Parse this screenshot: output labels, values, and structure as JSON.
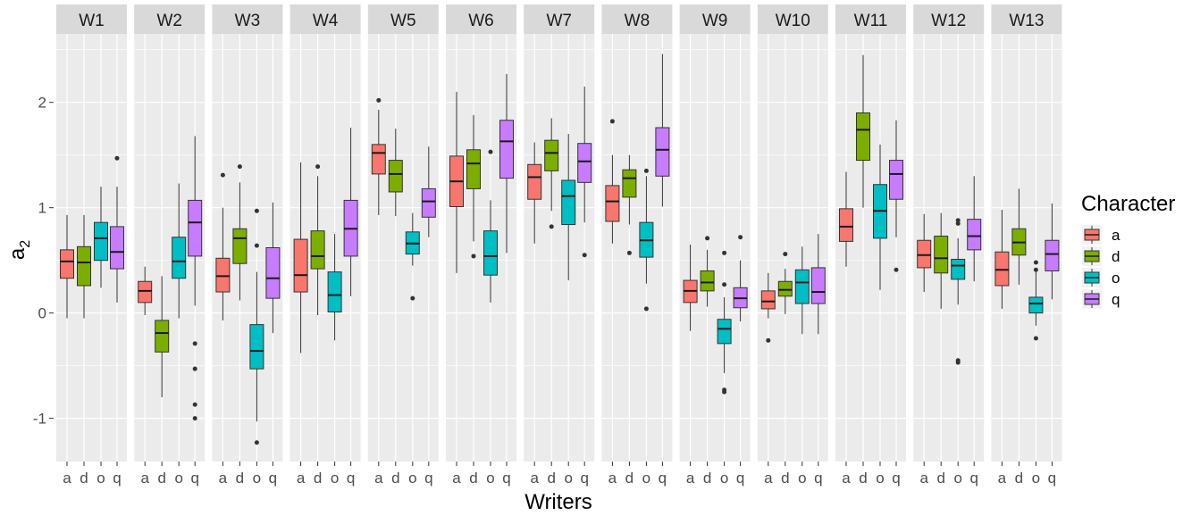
{
  "chart_data": {
    "type": "boxplot",
    "xlabel": "Writers",
    "ylabel": "a",
    "ylabel_sub": "2",
    "ylim": [
      -1.41,
      2.65
    ],
    "yticks": [
      -1,
      0,
      1,
      2
    ],
    "ytick_labels": [
      "-1",
      "0",
      "1",
      "2"
    ],
    "grid": true,
    "legend": {
      "title": "Character",
      "placement": "right",
      "entries": [
        "a",
        "d",
        "o",
        "q"
      ]
    },
    "colors": {
      "a": "#F8766D",
      "d": "#7CAE00",
      "o": "#00BFC4",
      "q": "#C77CFF"
    },
    "categories": [
      "a",
      "d",
      "o",
      "q"
    ],
    "facets": [
      {
        "name": "W1",
        "boxes": [
          [
            -0.05,
            0.33,
            0.49,
            0.6,
            0.93,
            []
          ],
          [
            -0.05,
            0.26,
            0.48,
            0.63,
            0.93,
            []
          ],
          [
            0.24,
            0.5,
            0.71,
            0.86,
            1.2,
            []
          ],
          [
            0.1,
            0.42,
            0.58,
            0.82,
            1.2,
            [
              1.47
            ]
          ]
        ]
      },
      {
        "name": "W2",
        "boxes": [
          [
            -0.02,
            0.1,
            0.21,
            0.3,
            0.44,
            []
          ],
          [
            -0.8,
            -0.37,
            -0.19,
            -0.07,
            0.35,
            []
          ],
          [
            -0.05,
            0.33,
            0.49,
            0.72,
            1.23,
            []
          ],
          [
            0.07,
            0.54,
            0.86,
            1.07,
            1.68,
            [
              -0.29,
              -0.53,
              -0.87,
              -1.0
            ]
          ]
        ]
      },
      {
        "name": "W3",
        "boxes": [
          [
            -0.07,
            0.2,
            0.35,
            0.52,
            1.0,
            [
              1.31
            ]
          ],
          [
            0.12,
            0.47,
            0.71,
            0.8,
            1.24,
            [
              1.39
            ]
          ],
          [
            -1.03,
            -0.53,
            -0.36,
            -0.11,
            0.39,
            [
              0.97,
              0.64,
              -1.23
            ]
          ],
          [
            -0.19,
            0.14,
            0.33,
            0.62,
            1.05,
            []
          ]
        ]
      },
      {
        "name": "W4",
        "boxes": [
          [
            -0.38,
            0.2,
            0.36,
            0.7,
            1.43,
            []
          ],
          [
            -0.02,
            0.42,
            0.54,
            0.78,
            1.3,
            [
              1.39
            ]
          ],
          [
            -0.26,
            0.01,
            0.17,
            0.39,
            0.75,
            []
          ],
          [
            0.16,
            0.54,
            0.8,
            1.07,
            1.76,
            []
          ]
        ]
      },
      {
        "name": "W5",
        "boxes": [
          [
            0.93,
            1.32,
            1.52,
            1.6,
            1.93,
            [
              2.02
            ]
          ],
          [
            0.92,
            1.15,
            1.32,
            1.45,
            1.75,
            []
          ],
          [
            0.45,
            0.56,
            0.66,
            0.77,
            0.95,
            [
              0.14
            ]
          ],
          [
            0.72,
            0.91,
            1.06,
            1.18,
            1.58,
            []
          ]
        ]
      },
      {
        "name": "W6",
        "boxes": [
          [
            0.38,
            1.01,
            1.25,
            1.49,
            2.1,
            []
          ],
          [
            0.68,
            1.18,
            1.42,
            1.55,
            1.88,
            [
              0.54
            ]
          ],
          [
            0.1,
            0.36,
            0.54,
            0.78,
            1.07,
            [
              1.53
            ]
          ],
          [
            0.57,
            1.28,
            1.63,
            1.83,
            2.27,
            []
          ]
        ]
      },
      {
        "name": "W7",
        "boxes": [
          [
            0.66,
            1.08,
            1.29,
            1.41,
            1.62,
            []
          ],
          [
            0.97,
            1.35,
            1.52,
            1.64,
            1.85,
            [
              0.82
            ]
          ],
          [
            0.31,
            0.84,
            1.11,
            1.26,
            1.7,
            []
          ],
          [
            0.86,
            1.24,
            1.44,
            1.61,
            2.15,
            [
              0.55
            ]
          ]
        ]
      },
      {
        "name": "W8",
        "boxes": [
          [
            0.66,
            0.87,
            1.06,
            1.21,
            1.5,
            [
              1.82
            ]
          ],
          [
            0.84,
            1.1,
            1.28,
            1.36,
            1.5,
            [
              0.57
            ]
          ],
          [
            0.28,
            0.53,
            0.69,
            0.86,
            1.3,
            [
              1.35,
              0.04
            ]
          ],
          [
            1.01,
            1.3,
            1.55,
            1.76,
            2.46,
            []
          ]
        ]
      },
      {
        "name": "W9",
        "boxes": [
          [
            -0.17,
            0.1,
            0.21,
            0.31,
            0.65,
            []
          ],
          [
            0.06,
            0.21,
            0.29,
            0.4,
            0.6,
            [
              0.71
            ]
          ],
          [
            -0.57,
            -0.29,
            -0.15,
            -0.06,
            0.15,
            [
              0.57,
              0.27,
              -0.73,
              -0.75
            ]
          ],
          [
            -0.08,
            0.05,
            0.14,
            0.24,
            0.5,
            [
              0.72
            ]
          ]
        ]
      },
      {
        "name": "W10",
        "boxes": [
          [
            -0.05,
            0.04,
            0.11,
            0.21,
            0.38,
            [
              -0.26
            ]
          ],
          [
            -0.01,
            0.16,
            0.22,
            0.3,
            0.42,
            [
              0.56
            ]
          ],
          [
            -0.2,
            0.09,
            0.29,
            0.41,
            0.63,
            []
          ],
          [
            -0.2,
            0.09,
            0.2,
            0.43,
            0.75,
            []
          ]
        ]
      },
      {
        "name": "W11",
        "boxes": [
          [
            0.44,
            0.68,
            0.82,
            0.99,
            1.34,
            []
          ],
          [
            1.0,
            1.45,
            1.74,
            1.9,
            2.45,
            []
          ],
          [
            0.22,
            0.71,
            0.97,
            1.22,
            1.6,
            []
          ],
          [
            0.72,
            1.08,
            1.32,
            1.45,
            1.83,
            [
              0.41
            ]
          ]
        ]
      },
      {
        "name": "W12",
        "boxes": [
          [
            0.2,
            0.43,
            0.55,
            0.69,
            0.94,
            []
          ],
          [
            0.04,
            0.38,
            0.52,
            0.73,
            0.95,
            []
          ],
          [
            0.08,
            0.32,
            0.45,
            0.51,
            0.71,
            [
              0.88,
              0.85,
              -0.45,
              -0.47
            ]
          ],
          [
            0.3,
            0.6,
            0.73,
            0.89,
            1.3,
            []
          ]
        ]
      },
      {
        "name": "W13",
        "boxes": [
          [
            0.04,
            0.26,
            0.41,
            0.58,
            0.98,
            []
          ],
          [
            0.27,
            0.55,
            0.67,
            0.8,
            1.18,
            []
          ],
          [
            -0.12,
            0.0,
            0.09,
            0.15,
            0.4,
            [
              0.48,
              0.41,
              -0.24
            ]
          ],
          [
            0.13,
            0.4,
            0.56,
            0.69,
            1.04,
            []
          ]
        ]
      }
    ],
    "box_format": [
      "lower_whisker",
      "q1",
      "median",
      "q3",
      "upper_whisker",
      "outliers"
    ]
  }
}
